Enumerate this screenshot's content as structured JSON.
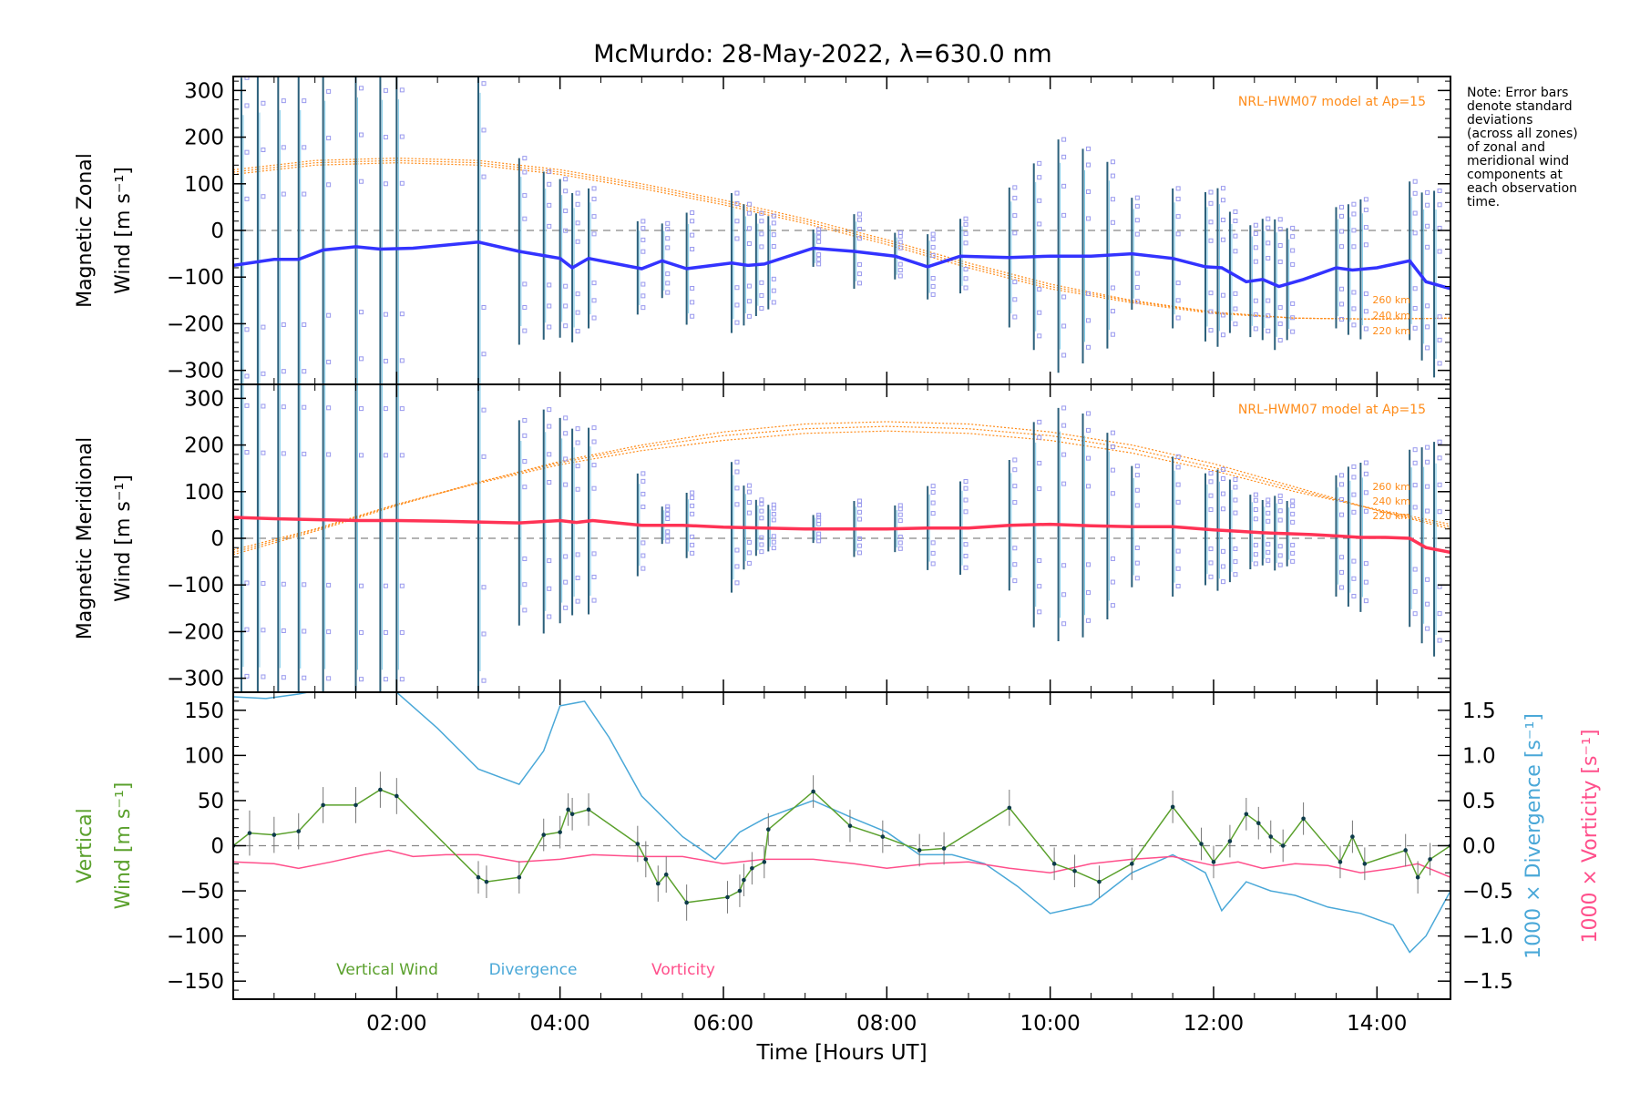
{
  "title": "McMurdo: 28-May-2022, λ=630.0 nm",
  "note_lines": [
    "Note: Error bars",
    "denote standard",
    "deviations",
    "(across all zones)",
    "of zonal and",
    "meridional wind",
    "components at",
    "each observation",
    "time."
  ],
  "colors": {
    "zonal": "#3333ff",
    "meridional": "#ff3355",
    "model": "#ff8c1a",
    "vertical": "#5aa02c",
    "divergence": "#4aa8d8",
    "vorticity": "#ff4f8b",
    "scatter": "#9999ee",
    "errorbar": "#2b5f7a",
    "zero_line": "#888888"
  },
  "chart_data": [
    {
      "type": "line",
      "panel": "zonal",
      "ylabel_line1": "Magnetic Zonal",
      "ylabel_line2": "Wind [m s⁻¹]",
      "ylim": [
        -330,
        330
      ],
      "xlim": [
        0.0,
        14.9
      ],
      "yticks": [
        "300",
        "200",
        "100",
        "0",
        "−100",
        "−200",
        "−300"
      ],
      "ytick_values": [
        300,
        200,
        100,
        0,
        -100,
        -200,
        -300
      ],
      "model_label": "NRL-HWM07 model at Ap=15",
      "model_heights": [
        "260 km",
        "240 km",
        "220 km"
      ],
      "model_series": [
        {
          "name": "260 km",
          "x": [
            0,
            1,
            2,
            3,
            4,
            5,
            6,
            7,
            8,
            9,
            10,
            11,
            12,
            13,
            14,
            14.9
          ],
          "values": [
            130,
            150,
            155,
            150,
            130,
            100,
            65,
            25,
            -20,
            -70,
            -115,
            -150,
            -175,
            -188,
            -190,
            -188
          ]
        },
        {
          "name": "240 km",
          "x": [
            0,
            1,
            2,
            3,
            4,
            5,
            6,
            7,
            8,
            9,
            10,
            11,
            12,
            13,
            14,
            14.9
          ],
          "values": [
            125,
            145,
            150,
            145,
            125,
            95,
            60,
            20,
            -25,
            -75,
            -120,
            -152,
            -176,
            -188,
            -190,
            -188
          ]
        },
        {
          "name": "220 km",
          "x": [
            0,
            1,
            2,
            3,
            4,
            5,
            6,
            7,
            8,
            9,
            10,
            11,
            12,
            13,
            14,
            14.9
          ],
          "values": [
            120,
            140,
            145,
            140,
            120,
            90,
            55,
            15,
            -30,
            -80,
            -125,
            -155,
            -178,
            -188,
            -190,
            -188
          ]
        }
      ],
      "series": [
        {
          "x": [
            0,
            0.5,
            0.8,
            1.1,
            1.5,
            1.8,
            2.2,
            3.0,
            3.5,
            4.0,
            4.15,
            4.35,
            5.0,
            5.25,
            5.55,
            6.1,
            6.3,
            6.5,
            7.1,
            7.6,
            8.1,
            8.5,
            8.9,
            9.5,
            10.0,
            10.5,
            11.0,
            11.5,
            11.9,
            12.1,
            12.4,
            12.6,
            12.8,
            13.1,
            13.5,
            13.7,
            14.0,
            14.4,
            14.6,
            14.9
          ],
          "values": [
            -75,
            -62,
            -62,
            -42,
            -35,
            -40,
            -38,
            -25,
            -45,
            -60,
            -80,
            -60,
            -82,
            -65,
            -82,
            -70,
            -75,
            -72,
            -38,
            -45,
            -55,
            -78,
            -55,
            -58,
            -55,
            -55,
            -50,
            -60,
            -78,
            -80,
            -110,
            -105,
            -120,
            -105,
            -80,
            -85,
            -80,
            -65,
            -110,
            -125
          ]
        }
      ],
      "errorbar_x": [
        0.1,
        0.3,
        0.55,
        0.8,
        1.1,
        1.5,
        1.8,
        2.0,
        3.0,
        3.5,
        3.8,
        4.0,
        4.15,
        4.35,
        4.95,
        5.25,
        5.55,
        6.1,
        6.25,
        6.4,
        6.55,
        7.1,
        7.6,
        8.1,
        8.5,
        8.9,
        9.5,
        9.8,
        10.1,
        10.4,
        10.7,
        11.0,
        11.5,
        11.9,
        12.05,
        12.2,
        12.45,
        12.6,
        12.75,
        12.9,
        13.5,
        13.65,
        13.8,
        14.4,
        14.55,
        14.7
      ],
      "errorbar_half": [
        400,
        400,
        400,
        400,
        400,
        400,
        400,
        400,
        400,
        200,
        180,
        170,
        160,
        150,
        100,
        80,
        120,
        150,
        130,
        110,
        100,
        40,
        80,
        50,
        70,
        80,
        150,
        200,
        250,
        230,
        200,
        120,
        150,
        160,
        170,
        130,
        120,
        130,
        140,
        120,
        130,
        140,
        150,
        170,
        180,
        200
      ]
    },
    {
      "type": "line",
      "panel": "meridional",
      "ylabel_line1": "Magnetic Meridional",
      "ylabel_line2": "Wind [m s⁻¹]",
      "ylim": [
        -330,
        330
      ],
      "xlim": [
        0.0,
        14.9
      ],
      "yticks": [
        "300",
        "200",
        "100",
        "0",
        "−100",
        "−200",
        "−300"
      ],
      "ytick_values": [
        300,
        200,
        100,
        0,
        -100,
        -200,
        -300
      ],
      "model_label": "NRL-HWM07 model at Ap=15",
      "model_heights": [
        "260 km",
        "240 km",
        "220 km"
      ],
      "model_series": [
        {
          "name": "260 km",
          "x": [
            0,
            1,
            2,
            3,
            4,
            5,
            6,
            7,
            8,
            9,
            10,
            11,
            12,
            13,
            14,
            14.9
          ],
          "values": [
            -35,
            15,
            70,
            120,
            165,
            200,
            228,
            245,
            250,
            245,
            228,
            200,
            160,
            110,
            60,
            20
          ]
        },
        {
          "name": "240 km",
          "x": [
            0,
            1,
            2,
            3,
            4,
            5,
            6,
            7,
            8,
            9,
            10,
            11,
            12,
            13,
            14,
            14.9
          ],
          "values": [
            -30,
            18,
            72,
            120,
            162,
            195,
            220,
            235,
            240,
            235,
            220,
            192,
            152,
            105,
            60,
            25
          ]
        },
        {
          "name": "220 km",
          "x": [
            0,
            1,
            2,
            3,
            4,
            5,
            6,
            7,
            8,
            9,
            10,
            11,
            12,
            13,
            14,
            14.9
          ],
          "values": [
            -25,
            20,
            73,
            118,
            158,
            188,
            210,
            225,
            230,
            225,
            210,
            183,
            145,
            100,
            62,
            30
          ]
        }
      ],
      "series": [
        {
          "x": [
            0,
            0.5,
            1.0,
            1.5,
            2.0,
            2.5,
            3.0,
            3.5,
            4.0,
            4.2,
            4.4,
            5.0,
            5.5,
            6.0,
            6.5,
            7.0,
            7.5,
            8.0,
            8.5,
            9.0,
            9.5,
            10.0,
            10.5,
            11.0,
            11.5,
            12.0,
            12.3,
            12.6,
            12.9,
            13.2,
            13.5,
            13.8,
            14.1,
            14.4,
            14.6,
            14.9
          ],
          "values": [
            45,
            42,
            40,
            38,
            38,
            37,
            35,
            33,
            38,
            34,
            38,
            28,
            28,
            24,
            22,
            20,
            20,
            20,
            22,
            22,
            28,
            30,
            27,
            25,
            25,
            18,
            15,
            12,
            10,
            8,
            5,
            2,
            2,
            0,
            -20,
            -30
          ]
        }
      ],
      "errorbar_x": [
        0.1,
        0.3,
        0.55,
        0.8,
        1.1,
        1.5,
        1.8,
        2.0,
        3.0,
        3.5,
        3.8,
        4.0,
        4.15,
        4.35,
        4.95,
        5.25,
        5.55,
        6.1,
        6.25,
        6.4,
        6.55,
        7.1,
        7.6,
        8.1,
        8.5,
        8.9,
        9.5,
        9.8,
        10.1,
        10.4,
        10.7,
        11.0,
        11.5,
        11.9,
        12.05,
        12.2,
        12.45,
        12.6,
        12.75,
        12.9,
        13.5,
        13.65,
        13.8,
        14.4,
        14.55,
        14.7
      ],
      "errorbar_half": [
        400,
        400,
        400,
        400,
        400,
        400,
        400,
        400,
        400,
        220,
        240,
        220,
        200,
        200,
        110,
        40,
        70,
        140,
        90,
        60,
        50,
        30,
        60,
        50,
        90,
        100,
        140,
        220,
        250,
        240,
        200,
        130,
        150,
        120,
        130,
        110,
        80,
        70,
        80,
        70,
        130,
        150,
        160,
        190,
        210,
        230
      ]
    },
    {
      "type": "line",
      "panel": "vertical",
      "ylabel_line1": "Vertical",
      "ylabel_line2": "Wind [m s⁻¹]",
      "y2label_divergence": "1000 × Divergence [s⁻¹]",
      "y2label_vorticity": "1000 × Vorticity [s⁻¹]",
      "xlabel": "Time [Hours UT]",
      "xlim": [
        0.0,
        14.9
      ],
      "xticks": [
        "02:00",
        "04:00",
        "06:00",
        "08:00",
        "10:00",
        "12:00",
        "14:00"
      ],
      "xtick_values": [
        2,
        4,
        6,
        8,
        10,
        12,
        14
      ],
      "ylim": [
        -170,
        170
      ],
      "yticks": [
        "150",
        "100",
        "50",
        "0",
        "−50",
        "−100",
        "−150"
      ],
      "ytick_values": [
        150,
        100,
        50,
        0,
        -50,
        -100,
        -150
      ],
      "y2lim": [
        -1.7,
        1.7
      ],
      "y2ticks": [
        "1.5",
        "1.0",
        "0.5",
        "0.0",
        "−0.5",
        "−1.0",
        "−1.5"
      ],
      "y2tick_values": [
        1.5,
        1.0,
        0.5,
        0.0,
        -0.5,
        -1.0,
        -1.5
      ],
      "legend": [
        "Vertical Wind",
        "Divergence",
        "Vorticity"
      ],
      "series": [
        {
          "name": "Vertical Wind",
          "x": [
            0.0,
            0.2,
            0.5,
            0.8,
            1.1,
            1.5,
            1.8,
            2.0,
            3.0,
            3.1,
            3.5,
            3.8,
            4.0,
            4.1,
            4.15,
            4.35,
            4.95,
            5.05,
            5.2,
            5.3,
            5.55,
            6.05,
            6.2,
            6.25,
            6.35,
            6.5,
            6.55,
            7.1,
            7.55,
            7.95,
            8.4,
            8.7,
            9.5,
            10.05,
            10.3,
            10.6,
            11.0,
            11.5,
            11.85,
            12.0,
            12.2,
            12.4,
            12.55,
            12.7,
            12.85,
            13.1,
            13.55,
            13.7,
            13.85,
            14.35,
            14.5,
            14.65,
            14.9
          ],
          "values": [
            0,
            14,
            12,
            16,
            45,
            45,
            62,
            55,
            -35,
            -40,
            -35,
            12,
            15,
            40,
            35,
            40,
            2,
            -15,
            -42,
            -32,
            -63,
            -57,
            -50,
            -38,
            -25,
            -18,
            18,
            60,
            22,
            10,
            -5,
            -3,
            42,
            -20,
            -28,
            -40,
            -20,
            43,
            2,
            -18,
            5,
            35,
            25,
            10,
            0,
            30,
            -18,
            10,
            -20,
            -5,
            -35,
            -15,
            0
          ],
          "errbar_half": [
            0,
            25,
            20,
            20,
            20,
            20,
            20,
            20,
            18,
            18,
            18,
            18,
            18,
            18,
            18,
            18,
            20,
            20,
            20,
            20,
            20,
            18,
            18,
            18,
            18,
            18,
            18,
            18,
            18,
            18,
            18,
            18,
            20,
            18,
            18,
            18,
            18,
            18,
            18,
            18,
            18,
            18,
            18,
            18,
            18,
            18,
            18,
            18,
            18,
            18,
            18,
            18,
            0
          ]
        },
        {
          "name": "Divergence",
          "x": [
            0.0,
            0.4,
            0.8,
            1.2,
            1.6,
            2.0,
            2.5,
            3.0,
            3.5,
            3.8,
            4.0,
            4.3,
            4.6,
            5.0,
            5.5,
            5.9,
            6.2,
            6.5,
            7.1,
            7.6,
            8.0,
            8.4,
            8.8,
            9.2,
            9.6,
            10.0,
            10.5,
            11.0,
            11.5,
            11.9,
            12.1,
            12.4,
            12.7,
            13.0,
            13.4,
            13.8,
            14.2,
            14.4,
            14.6,
            14.9
          ],
          "values": [
            1.65,
            1.63,
            1.68,
            1.75,
            1.8,
            1.7,
            1.3,
            0.85,
            0.68,
            1.05,
            1.55,
            1.6,
            1.2,
            0.55,
            0.1,
            -0.15,
            0.15,
            0.3,
            0.5,
            0.3,
            0.15,
            -0.1,
            -0.1,
            -0.2,
            -0.45,
            -0.75,
            -0.65,
            -0.3,
            -0.1,
            -0.3,
            -0.72,
            -0.4,
            -0.5,
            -0.55,
            -0.68,
            -0.75,
            -0.88,
            -1.18,
            -1.0,
            -0.5
          ]
        },
        {
          "name": "Vorticity",
          "x": [
            0.0,
            0.5,
            0.8,
            1.2,
            1.6,
            1.9,
            2.2,
            2.6,
            3.0,
            3.5,
            4.0,
            4.4,
            5.0,
            5.5,
            6.0,
            6.5,
            7.1,
            7.6,
            8.0,
            8.5,
            9.0,
            9.5,
            10.0,
            10.5,
            11.0,
            11.5,
            12.0,
            12.3,
            12.6,
            13.0,
            13.4,
            13.8,
            14.2,
            14.5,
            14.9
          ],
          "values": [
            -0.18,
            -0.2,
            -0.25,
            -0.18,
            -0.1,
            -0.05,
            -0.12,
            -0.1,
            -0.1,
            -0.18,
            -0.15,
            -0.1,
            -0.12,
            -0.12,
            -0.2,
            -0.15,
            -0.15,
            -0.2,
            -0.25,
            -0.2,
            -0.18,
            -0.25,
            -0.3,
            -0.2,
            -0.15,
            -0.12,
            -0.22,
            -0.18,
            -0.25,
            -0.2,
            -0.22,
            -0.3,
            -0.25,
            -0.2,
            -0.35
          ]
        }
      ]
    }
  ]
}
